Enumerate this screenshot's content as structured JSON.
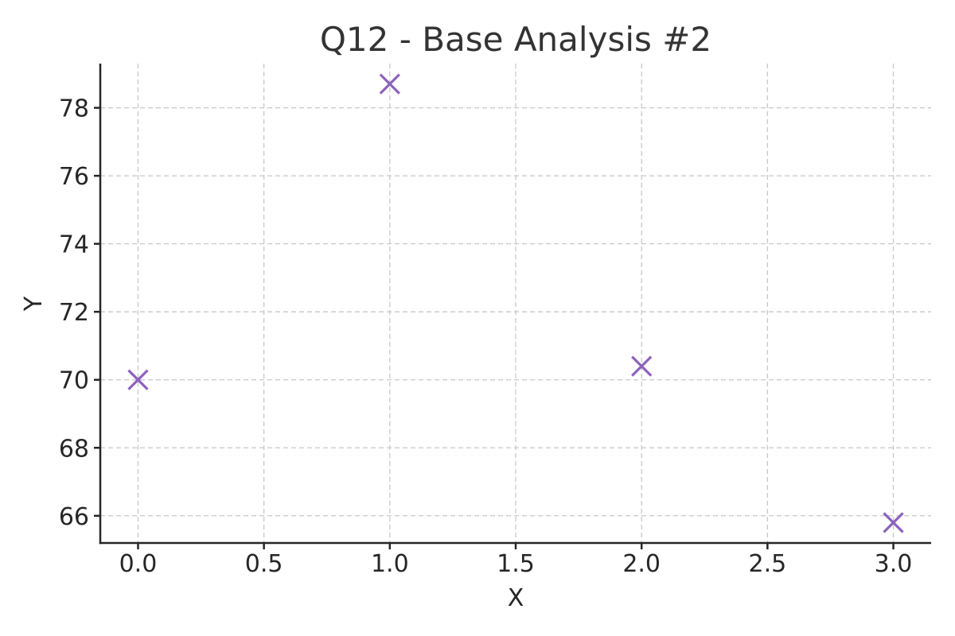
{
  "chart_data": {
    "type": "scatter",
    "title": "Q12 - Base Analysis #2",
    "xlabel": "X",
    "ylabel": "Y",
    "xlim": [
      -0.15,
      3.15
    ],
    "ylim": [
      65.2,
      79.3
    ],
    "xticks": [
      0.0,
      0.5,
      1.0,
      1.5,
      2.0,
      2.5,
      3.0
    ],
    "xtick_labels": [
      "0.0",
      "0.5",
      "1.0",
      "1.5",
      "2.0",
      "2.5",
      "3.0"
    ],
    "yticks": [
      66,
      68,
      70,
      72,
      74,
      76,
      78
    ],
    "ytick_labels": [
      "66",
      "68",
      "70",
      "72",
      "74",
      "76",
      "78"
    ],
    "grid": true,
    "marker": "x",
    "color": "#8c62bd",
    "series": [
      {
        "x": [
          0,
          1,
          2,
          3
        ],
        "y": [
          70.0,
          78.7,
          70.4,
          65.8
        ]
      }
    ]
  }
}
